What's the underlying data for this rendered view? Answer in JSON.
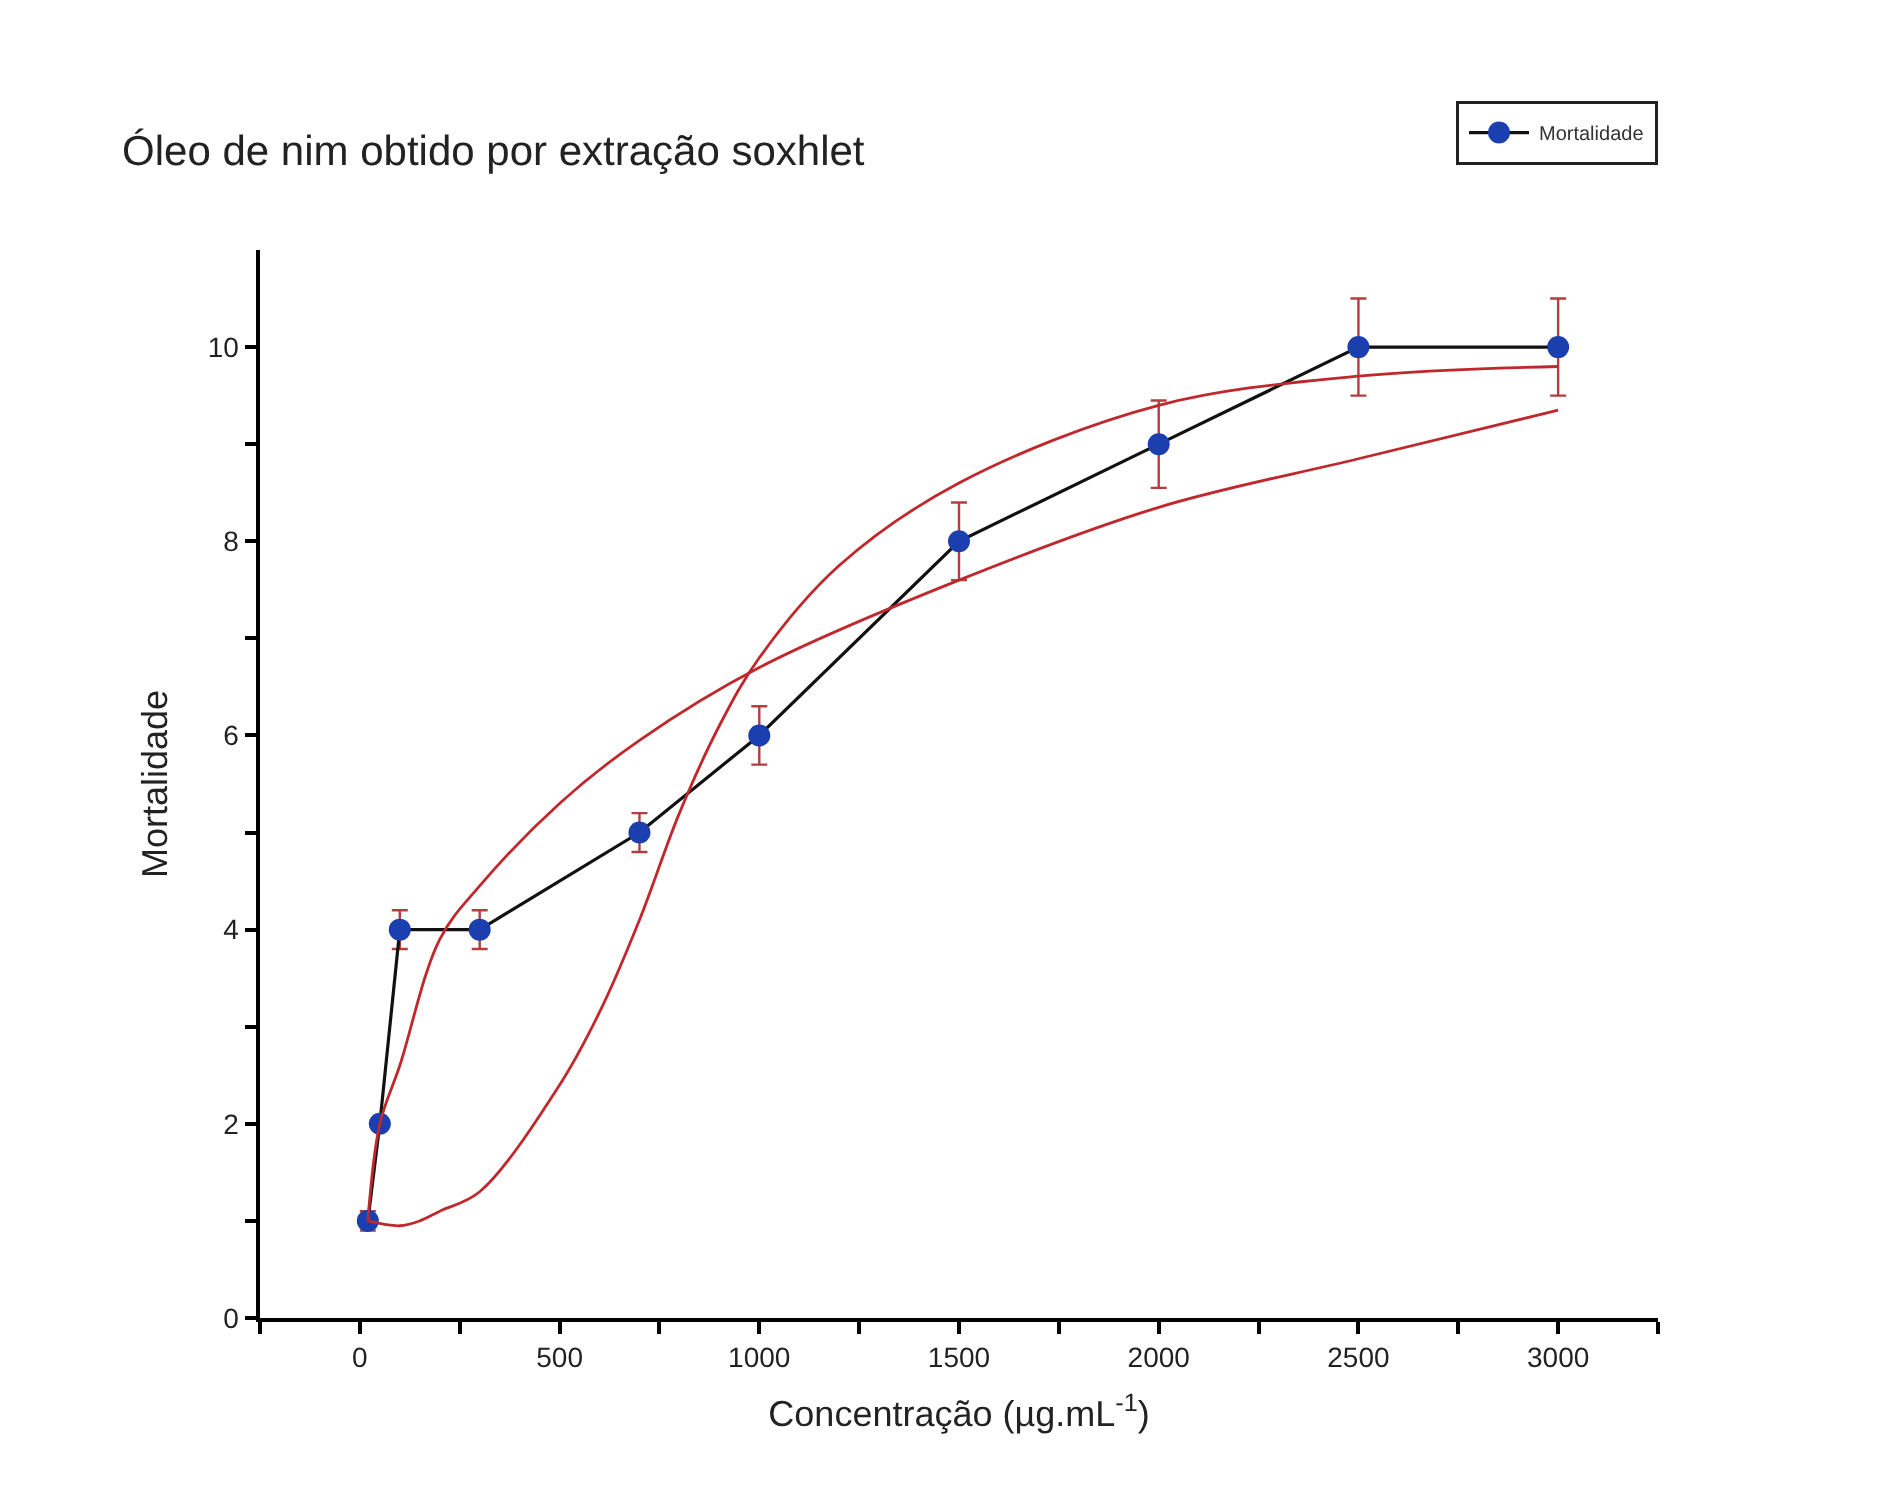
{
  "chart_data": {
    "type": "line",
    "title": "Óleo de nim obtido por extração soxhlet",
    "xlabel": "Concentração (µg.mL$^{-1}$)",
    "ylabel": "Mortalidade",
    "x": [
      20,
      50,
      100,
      300,
      700,
      1000,
      1500,
      2000,
      2500,
      3000
    ],
    "series": [
      {
        "name": "Mortalidade",
        "color": "#1c3fb0",
        "values": [
          1,
          2,
          4,
          4,
          5,
          6,
          8,
          9,
          10,
          10
        ],
        "errors": [
          0.1,
          null,
          0.2,
          0.2,
          0.2,
          0.3,
          0.4,
          0.45,
          0.5,
          0.5
        ]
      },
      {
        "type": "line",
        "color": "#c0282d",
        "marker": "none",
        "x": [
          20,
          100,
          150,
          200,
          300,
          500,
          600,
          700,
          800,
          900,
          1000,
          1200,
          1500,
          2000,
          2500,
          3000
        ],
        "values": [
          1,
          0.95,
          1.0,
          1.1,
          1.3,
          2.4,
          3.15,
          4.1,
          5.2,
          6.1,
          6.8,
          7.75,
          8.6,
          9.4,
          9.7,
          9.8
        ]
      },
      {
        "type": "line",
        "color": "#c0282d",
        "marker": "none",
        "x": [
          20,
          50,
          100,
          200,
          300,
          500,
          700,
          1000,
          1500,
          2000,
          2500,
          3000
        ],
        "values": [
          1,
          2,
          2.6,
          3.9,
          4.45,
          5.3,
          5.95,
          6.7,
          7.6,
          8.35,
          8.85,
          9.35
        ]
      }
    ],
    "xlim": [
      -250,
      3250
    ],
    "xticks": [
      {
        "value": -250,
        "label": null
      },
      0,
      {
        "value": 250,
        "label": null
      },
      500,
      {
        "value": 750,
        "label": null
      },
      1000,
      {
        "value": 1250,
        "label": null
      },
      1500,
      {
        "value": 1750,
        "label": null
      },
      2000,
      {
        "value": 2250,
        "label": null
      },
      2500,
      {
        "value": 2750,
        "label": null
      },
      3000,
      {
        "value": 3250,
        "label": null
      }
    ],
    "ylim": [
      0,
      11
    ],
    "yticks": [
      0,
      {
        "value": 1,
        "label": null
      },
      2,
      {
        "value": 3,
        "label": null
      },
      4,
      {
        "value": 5,
        "label": null
      },
      6,
      {
        "value": 7,
        "label": null
      },
      8,
      {
        "value": 9,
        "label": null
      },
      10
    ],
    "legend": "top right",
    "marker": "circle",
    "line_style": "solid"
  }
}
